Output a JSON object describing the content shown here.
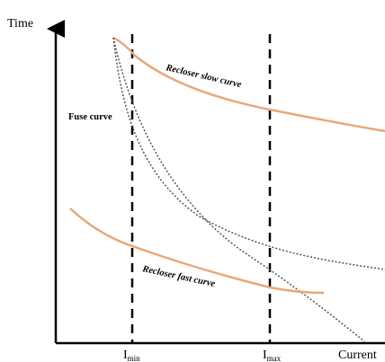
{
  "axes": {
    "y_label": "Time",
    "x_label": "Current"
  },
  "markers": [
    {
      "id": "imin",
      "base": "I",
      "sub": "min"
    },
    {
      "id": "imax",
      "base": "I",
      "sub": "max"
    }
  ],
  "curves": {
    "recloser_slow": {
      "label": "Recloser slow curve",
      "color": "#e8a878"
    },
    "recloser_fast": {
      "label": "Recloser fast curve",
      "color": "#e8a878"
    },
    "fuse": {
      "label": "Fuse curve",
      "color": "#555555"
    }
  }
}
